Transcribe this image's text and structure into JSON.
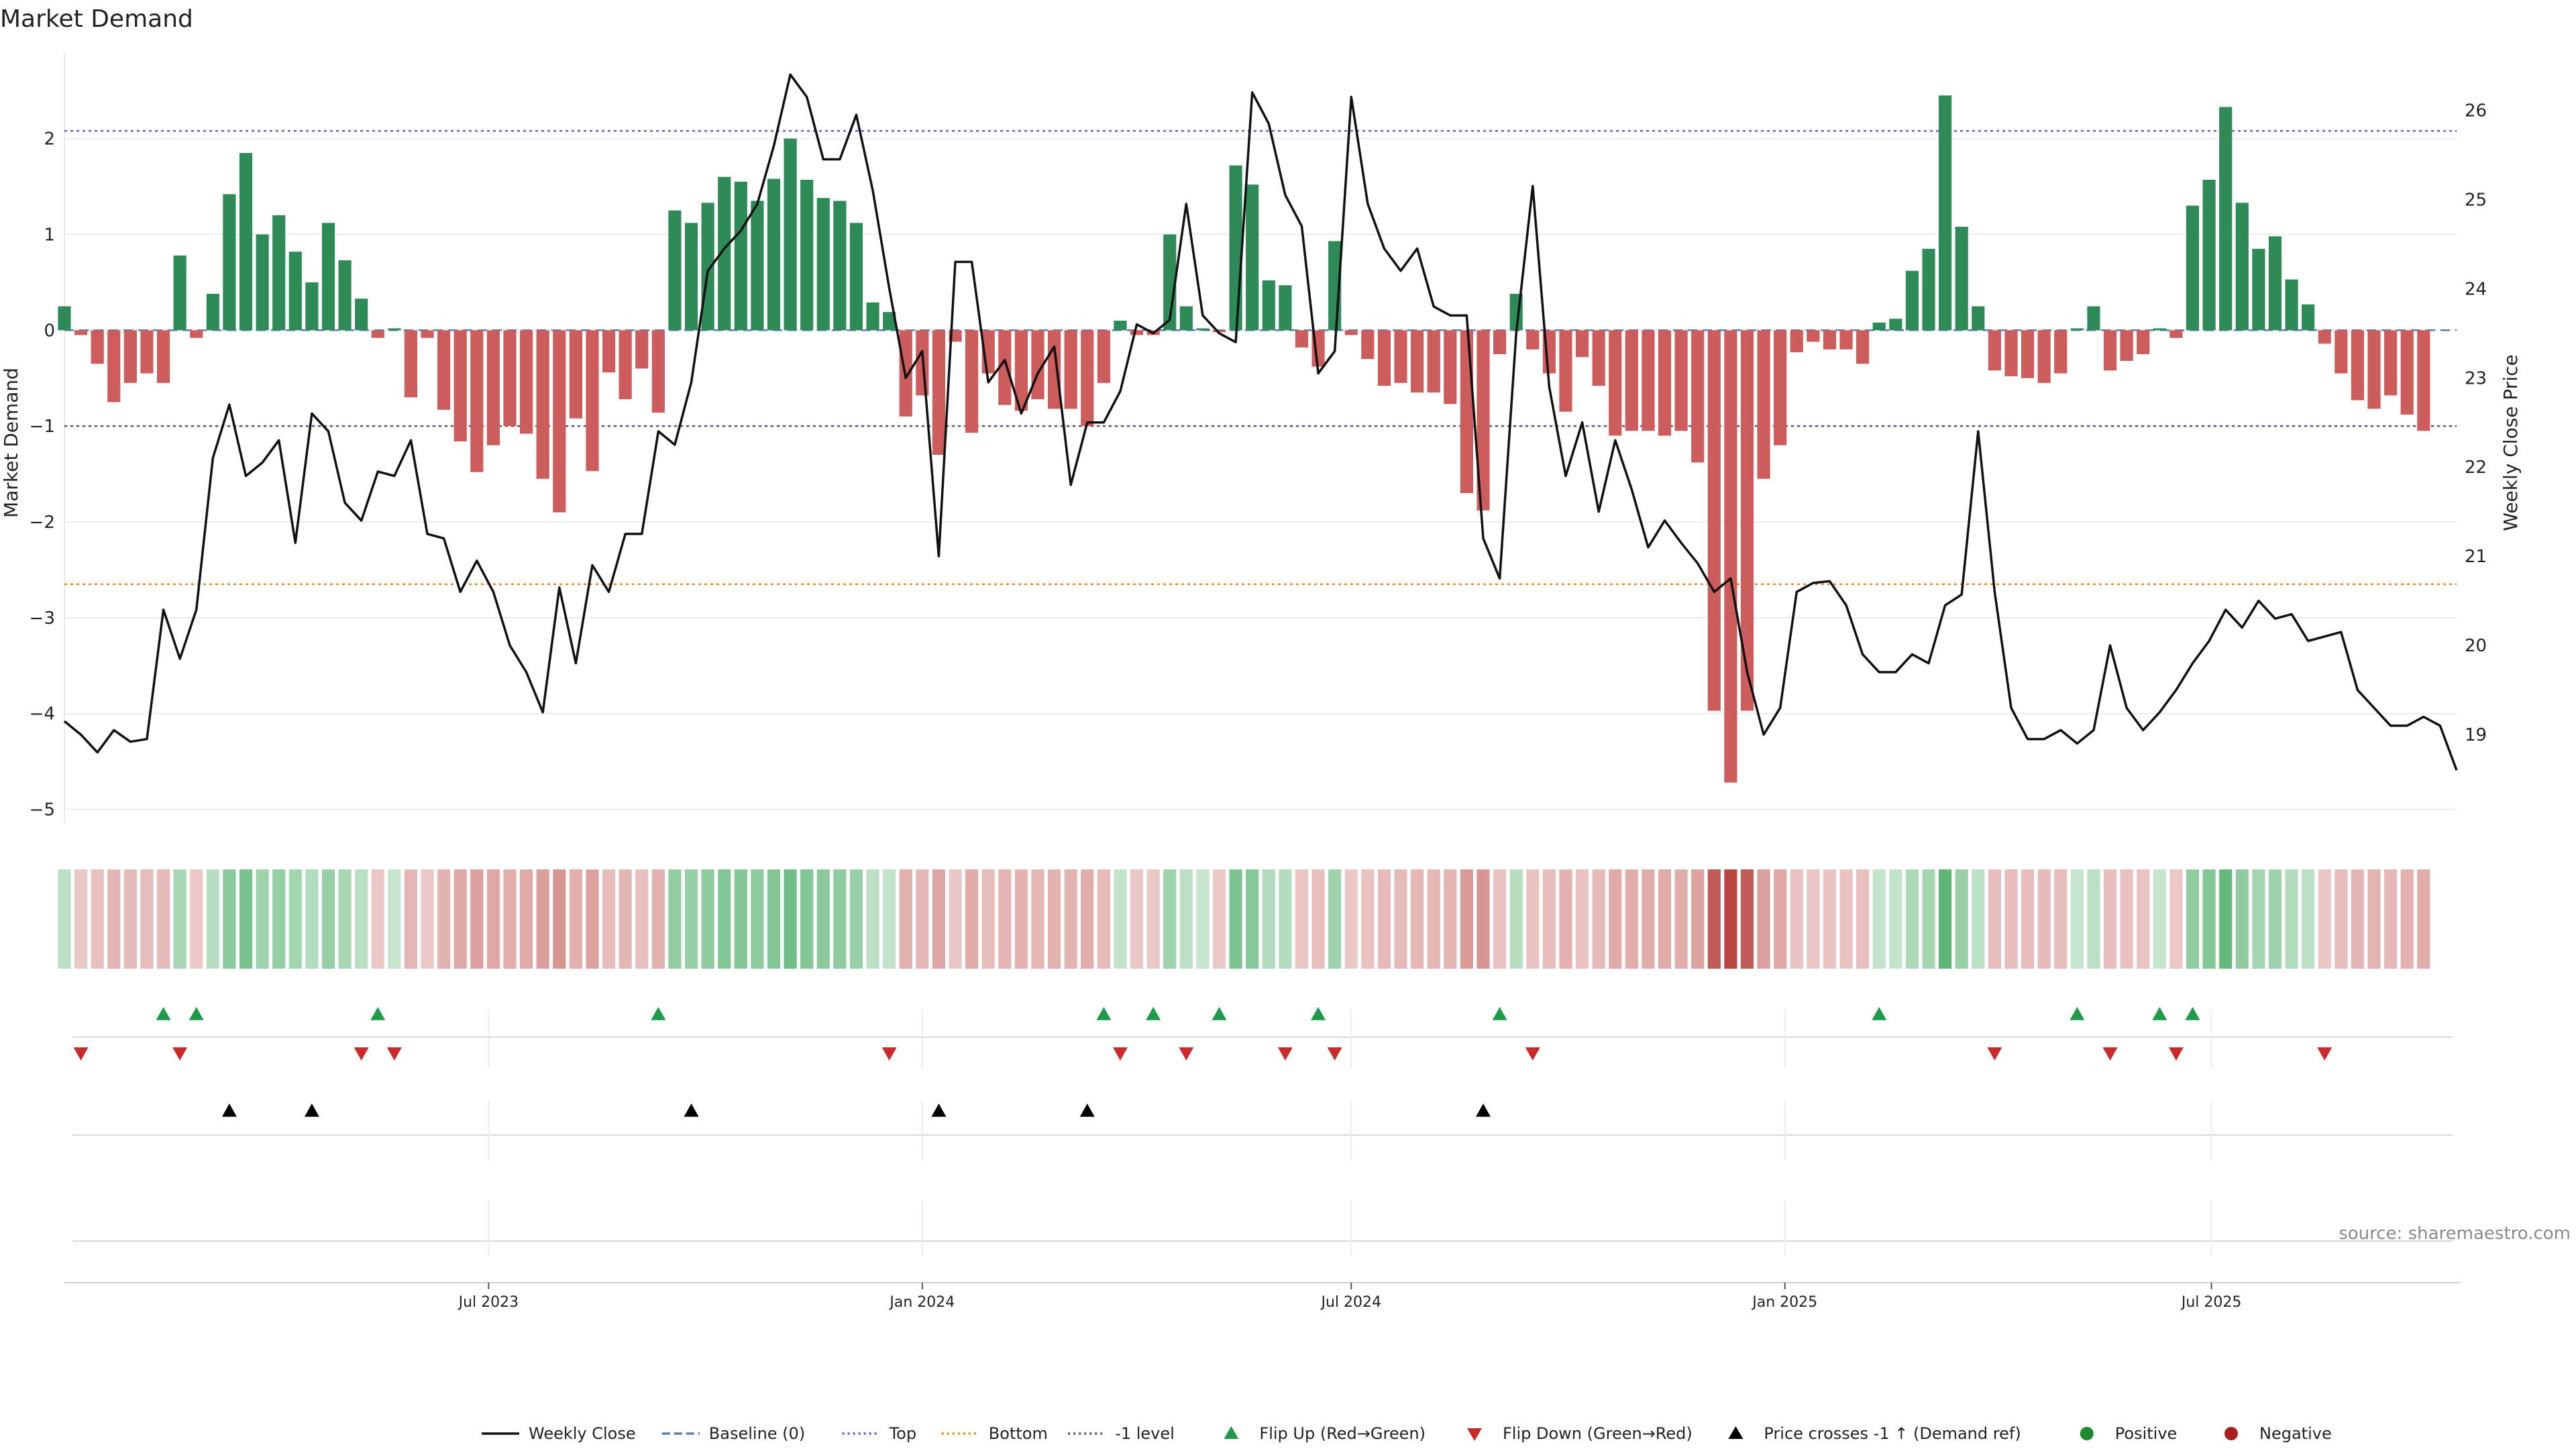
{
  "chart_data": {
    "type": "bar",
    "title": "Market Demand",
    "ylabel": "Market Demand",
    "y2label": "Weekly Close Price",
    "ylim": [
      -5.15,
      2.9
    ],
    "y2lim": [
      18.0,
      26.65
    ],
    "yticks": [
      2,
      1,
      0,
      -1,
      -2,
      -3,
      -4,
      -5
    ],
    "yticklabels": [
      "2",
      "1",
      "0",
      "−1",
      "−2",
      "−3",
      "−4",
      "−5"
    ],
    "y2ticks": [
      26,
      25,
      24,
      23,
      22,
      21,
      20,
      19
    ],
    "y2ticklabels": [
      "26",
      "25",
      "24",
      "23",
      "22",
      "21",
      "20",
      "19"
    ],
    "x_range": [
      "2023-01-02",
      "2025-10-13"
    ],
    "xticks": [
      {
        "date": "2023-07-01",
        "label": "Jul 2023"
      },
      {
        "date": "2024-01-01",
        "label": "Jan 2024"
      },
      {
        "date": "2024-07-01",
        "label": "Jul 2024"
      },
      {
        "date": "2025-01-01",
        "label": "Jan 2025"
      },
      {
        "date": "2025-07-01",
        "label": "Jul 2025"
      }
    ],
    "start_date": "2023-01-02",
    "weekly_dates_note_removed": true,
    "levels": {
      "top": 2.08,
      "bottom": -2.65,
      "minus_one": -1.0,
      "baseline": 0
    },
    "demand": [
      0.25,
      -0.05,
      -0.35,
      -0.75,
      -0.55,
      -0.45,
      -0.55,
      0.78,
      -0.08,
      0.38,
      1.42,
      1.85,
      1.0,
      1.2,
      0.82,
      0.5,
      1.12,
      0.73,
      0.33,
      -0.08,
      0.02,
      -0.7,
      -0.08,
      -0.83,
      -1.16,
      -1.48,
      -1.2,
      -1.0,
      -1.08,
      -1.55,
      -1.9,
      -0.92,
      -1.47,
      -0.44,
      -0.72,
      -0.4,
      -0.86,
      1.25,
      1.12,
      1.33,
      1.6,
      1.55,
      1.35,
      1.58,
      2.0,
      1.57,
      1.38,
      1.35,
      1.12,
      0.29,
      0.19,
      -0.9,
      -0.68,
      -1.3,
      -0.12,
      -1.07,
      -0.45,
      -0.78,
      -0.84,
      -0.72,
      -0.82,
      -0.82,
      -1.0,
      -0.55,
      0.1,
      -0.05,
      -0.05,
      1.0,
      0.25,
      0.02,
      -0.02,
      1.72,
      1.52,
      0.52,
      0.47,
      -0.18,
      -0.38,
      0.93,
      -0.05,
      -0.3,
      -0.58,
      -0.55,
      -0.65,
      -0.65,
      -0.77,
      -1.7,
      -1.88,
      -0.25,
      0.38,
      -0.2,
      -0.45,
      -0.85,
      -0.28,
      -0.58,
      -1.1,
      -1.05,
      -1.05,
      -1.1,
      -1.05,
      -1.38,
      -3.97,
      -4.72,
      -3.97,
      -1.55,
      -1.2,
      -0.23,
      -0.12,
      -0.2,
      -0.2,
      -0.35,
      0.08,
      0.12,
      0.62,
      0.85,
      2.45,
      1.08,
      0.25,
      -0.42,
      -0.48,
      -0.5,
      -0.55,
      -0.45,
      0.02,
      0.25,
      -0.42,
      -0.32,
      -0.25,
      0.02,
      -0.08,
      1.3,
      1.57,
      2.33,
      1.33,
      0.85,
      0.98,
      0.53,
      0.27,
      -0.14,
      -0.45,
      -0.73,
      -0.82,
      -0.68,
      -0.88,
      -1.05
    ],
    "close": [
      19.15,
      19.0,
      18.8,
      19.05,
      18.92,
      18.95,
      20.4,
      19.85,
      20.4,
      22.1,
      22.7,
      21.9,
      22.05,
      22.3,
      21.15,
      22.6,
      22.4,
      21.6,
      21.4,
      21.95,
      21.9,
      22.3,
      21.25,
      21.2,
      20.6,
      20.95,
      20.6,
      20.0,
      19.7,
      19.25,
      20.65,
      19.8,
      20.9,
      20.6,
      21.25,
      21.25,
      22.4,
      22.25,
      22.95,
      24.2,
      24.45,
      24.65,
      24.95,
      25.6,
      26.4,
      26.15,
      25.45,
      25.45,
      25.95,
      25.1,
      24.0,
      23.0,
      23.3,
      21.0,
      24.3,
      24.3,
      22.95,
      23.2,
      22.6,
      23.05,
      23.35,
      21.8,
      22.5,
      22.5,
      22.85,
      23.6,
      23.5,
      23.65,
      24.95,
      23.7,
      23.5,
      23.4,
      26.2,
      25.85,
      25.05,
      24.7,
      23.05,
      23.3,
      26.15,
      24.95,
      24.45,
      24.2,
      24.45,
      23.8,
      23.7,
      23.7,
      21.2,
      20.75,
      23.5,
      25.15,
      22.9,
      21.9,
      22.5,
      21.5,
      22.3,
      21.75,
      21.1,
      21.4,
      21.15,
      20.92,
      20.6,
      20.75,
      19.7,
      19.0,
      19.3,
      20.6,
      20.7,
      20.72,
      20.45,
      19.9,
      19.7,
      19.7,
      19.9,
      19.8,
      20.45,
      20.57,
      22.4,
      20.6,
      19.3,
      18.95,
      18.95,
      19.05,
      18.9,
      19.05,
      20.0,
      19.3,
      19.05,
      19.25,
      19.5,
      19.8,
      20.05,
      20.4,
      20.2,
      20.5,
      20.3,
      20.35,
      20.05,
      20.1,
      20.15,
      19.5,
      19.3,
      19.1,
      19.1,
      19.2,
      19.1,
      18.6
    ],
    "flip_up": [
      6,
      8,
      19,
      36,
      63,
      66,
      70,
      76,
      87,
      110,
      122,
      127,
      129
    ],
    "flip_down": [
      1,
      7,
      18,
      20,
      50,
      64,
      68,
      74,
      77,
      89,
      117,
      124,
      128,
      137
    ],
    "price_cross_up": [
      10,
      15,
      38,
      53,
      62,
      86
    ],
    "legend": [
      {
        "label": "Weekly Close",
        "marker": "line-solid",
        "color": "#111111"
      },
      {
        "label": "Baseline (0)",
        "marker": "line-dashed",
        "color": "#5b7fb5"
      },
      {
        "label": "Top",
        "marker": "line-dotted",
        "color": "#6a5acd"
      },
      {
        "label": "Bottom",
        "marker": "line-dotted",
        "color": "#e08a1e"
      },
      {
        "label": "-1 level",
        "marker": "line-dotted",
        "color": "#555577"
      },
      {
        "label": "Flip Up (Red→Green)",
        "marker": "triangle-up",
        "color": "#1f9a4a"
      },
      {
        "label": "Flip Down (Green→Red)",
        "marker": "triangle-down",
        "color": "#cc2a2a"
      },
      {
        "label": "Price crosses -1 ↑ (Demand ref)",
        "marker": "triangle-up",
        "color": "#000000"
      },
      {
        "label": "Positive",
        "marker": "circle",
        "color": "#1e8a2e"
      },
      {
        "label": "Negative",
        "marker": "circle",
        "color": "#a82020"
      }
    ],
    "legend_placement": "bottom-center",
    "colors": {
      "positive": "#2e8b57",
      "negative": "#cd5c5c",
      "close": "#111111"
    },
    "source": "source: sharemaestro.com"
  }
}
